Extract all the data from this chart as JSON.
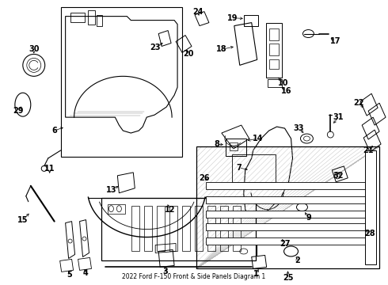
{
  "title": "2022 Ford F-150 Front & Side Panels Diagram 1",
  "bg_color": "#ffffff",
  "fg_color": "#000000",
  "fig_width": 4.9,
  "fig_height": 3.6,
  "dpi": 100,
  "font_size": 7.0
}
